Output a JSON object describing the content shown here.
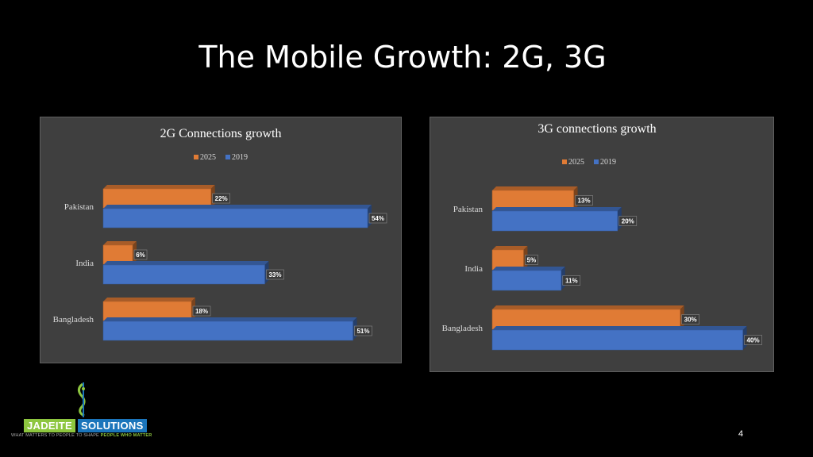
{
  "slide": {
    "title": "The Mobile Growth: 2G, 3G",
    "page_number": "4"
  },
  "logo": {
    "word_left": "JADEITE",
    "word_right": "SOLUTIONS",
    "tagline_part1": "WHAT MATTERS TO PEOPLE TO SHAPE",
    "tagline_part2": "PEOPLE WHO MATTER"
  },
  "colors": {
    "series_2025": "#e07b35",
    "series_2019": "#4472c4",
    "panel_bg": "#3f3f3f",
    "text": "#d9d9d9"
  },
  "chart_data": [
    {
      "type": "bar",
      "orientation": "horizontal",
      "style": "3d",
      "title": "2G Connections growth",
      "categories": [
        "Pakistan",
        "India",
        "Bangladesh"
      ],
      "series": [
        {
          "name": "2025",
          "values": [
            22,
            6,
            18
          ],
          "labels": [
            "22%",
            "6%",
            "18%"
          ]
        },
        {
          "name": "2019",
          "values": [
            54,
            33,
            51
          ],
          "labels": [
            "54%",
            "33%",
            "51%"
          ]
        }
      ],
      "unit": "%",
      "legend_position": "top",
      "xlim": [
        0,
        60
      ]
    },
    {
      "type": "bar",
      "orientation": "horizontal",
      "style": "3d",
      "title": "3G connections growth",
      "categories": [
        "Pakistan",
        "India",
        "Bangladesh"
      ],
      "series": [
        {
          "name": "2025",
          "values": [
            13,
            5,
            30
          ],
          "labels": [
            "13%",
            "5%",
            "30%"
          ]
        },
        {
          "name": "2019",
          "values": [
            20,
            11,
            40
          ],
          "labels": [
            "20%",
            "11%",
            "40%"
          ]
        }
      ],
      "unit": "%",
      "legend_position": "top",
      "xlim": [
        0,
        45
      ]
    }
  ]
}
